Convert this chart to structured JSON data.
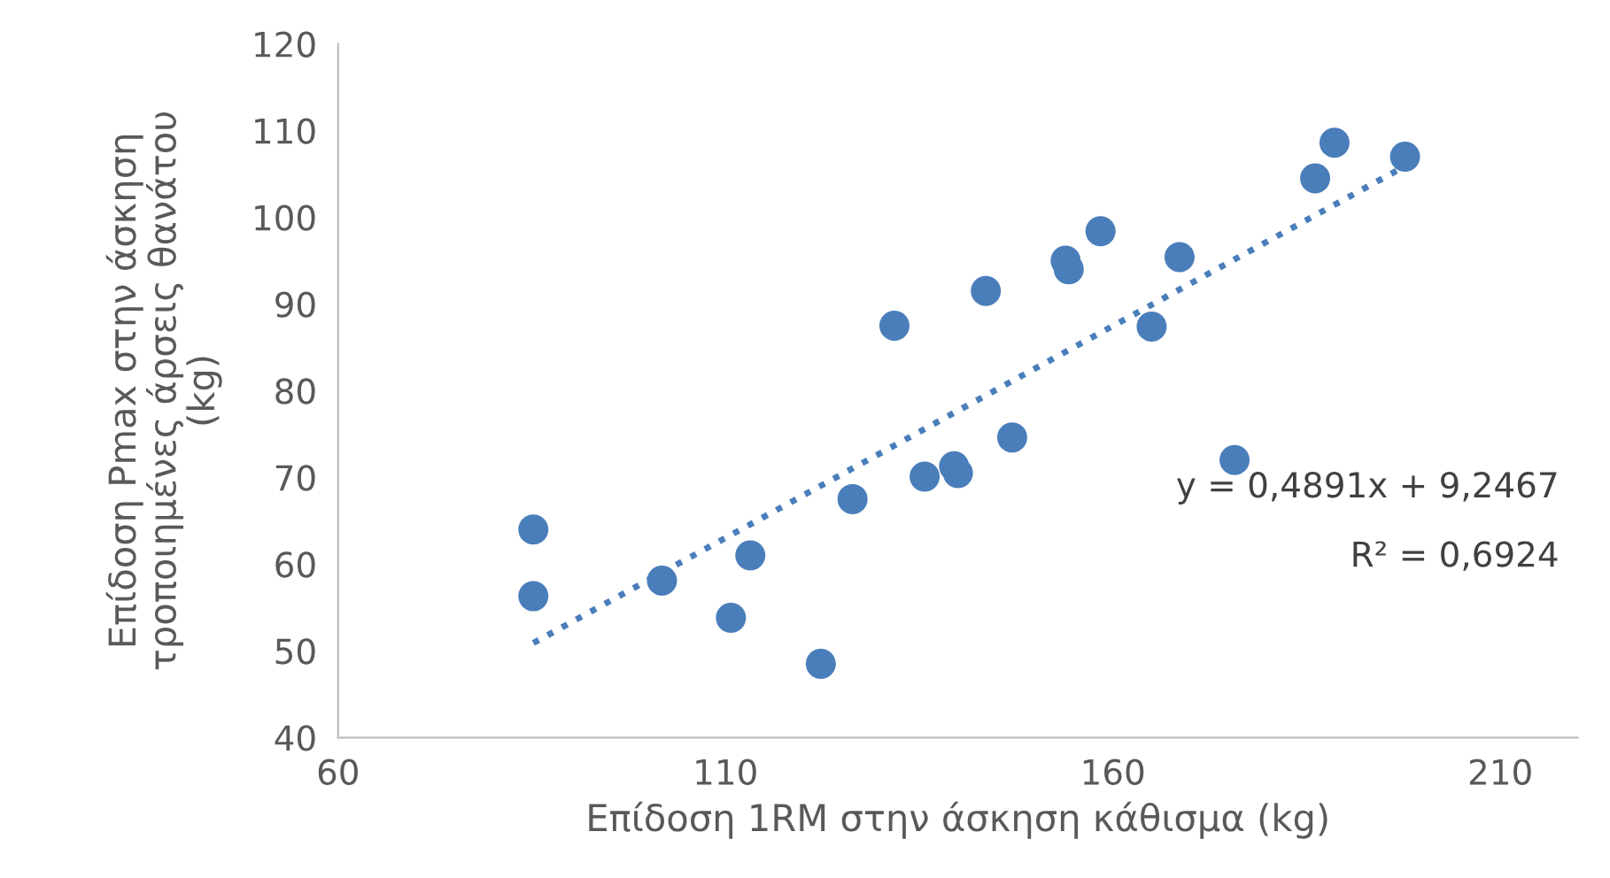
{
  "chart_data": {
    "type": "scatter",
    "xlabel": "Επίδοση 1RM στην άσκηση κάθισμα (kg)",
    "ylabel": "Επίδοση Pmax στην άσκηση\nτροποιημένες άρσεις θανάτου\n(kg)",
    "xlim": [
      60,
      220
    ],
    "xticks": [
      60,
      110,
      160,
      210
    ],
    "ylim": [
      40,
      120
    ],
    "yticks": [
      40,
      50,
      60,
      70,
      80,
      90,
      100,
      110,
      120
    ],
    "grid": false,
    "series": [
      {
        "marker": "circle",
        "color": "#4a7ebb",
        "x": [
          85.2,
          85.2,
          101.8,
          110.7,
          113.2,
          122.3,
          126.4,
          131.8,
          135.7,
          139.5,
          140.0,
          147.0,
          143.6,
          153.9,
          154.3,
          158.4,
          165.0,
          168.6,
          175.7,
          186.1,
          188.6,
          197.7
        ],
        "values": [
          64.0,
          56.3,
          58.1,
          53.8,
          61.0,
          48.5,
          67.5,
          87.5,
          70.1,
          71.3,
          70.5,
          74.6,
          91.5,
          95.0,
          94.0,
          98.4,
          87.4,
          95.4,
          72.0,
          104.5,
          108.6,
          107.0
        ]
      },
      {
        "type": "line",
        "color": "#4a7ebb",
        "line_style": "dotted",
        "x": [
          85.2,
          197.7
        ],
        "values": [
          50.9,
          105.9
        ]
      }
    ],
    "annotations": [
      "y = 0,4891x + 9,2467",
      "R² = 0,6924"
    ]
  }
}
